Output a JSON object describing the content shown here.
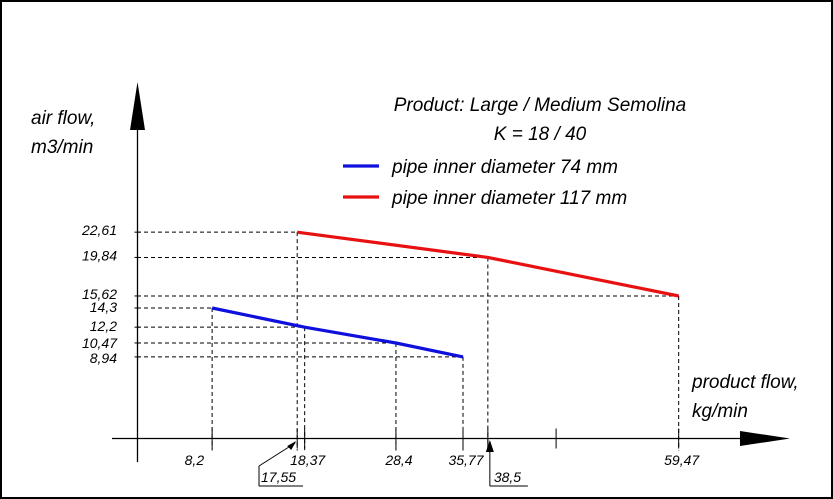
{
  "chart_data": {
    "type": "line",
    "title_lines": [
      "Product: Large / Medium Semolina",
      "K = 18 / 40"
    ],
    "ylabel_lines": [
      "air flow,",
      "m3/min"
    ],
    "xlabel_lines": [
      "product flow,",
      "kg/min"
    ],
    "x_tick_labels": [
      "8,2",
      "18,37",
      "28,4",
      "35,77",
      "59,47"
    ],
    "x_callout_labels": [
      "17,55",
      "38,5"
    ],
    "y_tick_labels": [
      "22,61",
      "19,84",
      "15,62",
      "14,3",
      "12,2",
      "10,47",
      "8,94"
    ],
    "series": [
      {
        "name": "pipe inner diameter 74 mm",
        "color": "#1010dd",
        "x": [
          8.2,
          18.37,
          28.4,
          35.77
        ],
        "y": [
          14.3,
          12.2,
          10.47,
          8.94
        ]
      },
      {
        "name": "pipe inner diameter 117 mm",
        "color": "#e81010",
        "x": [
          17.55,
          38.5,
          59.47
        ],
        "y": [
          22.61,
          19.84,
          15.62
        ]
      }
    ],
    "x_tick_marks": [
      8.2,
      17.55,
      18.37,
      28.4,
      35.77,
      38.5,
      46.0,
      59.47
    ],
    "xlim": [
      -3,
      65
    ],
    "ylim": [
      0,
      30
    ],
    "grid": false,
    "legend": "top-center"
  }
}
